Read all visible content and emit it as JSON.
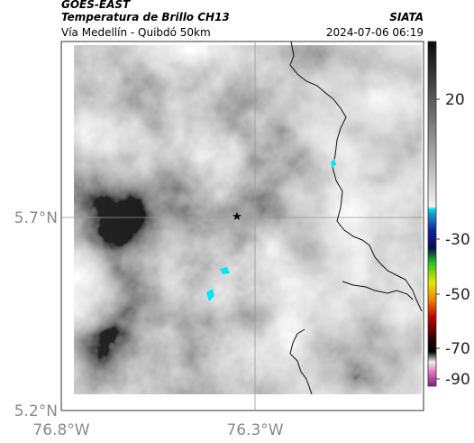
{
  "header": {
    "satellite": "GOES-EAST",
    "product": "Temperatura de Brillo CH13",
    "route": "Vía Medellín - Quibdó 50km",
    "source": "SIATA",
    "datetime": "2024-07-06 06:19"
  },
  "axes": {
    "latitude_labels": [
      "5.7°N",
      "5.2°N"
    ],
    "longitude_labels": [
      "76.8°W",
      "76.3°W"
    ]
  },
  "colorbar": {
    "labels": [
      "20",
      "-30",
      "-50",
      "-70",
      "-90"
    ]
  }
}
